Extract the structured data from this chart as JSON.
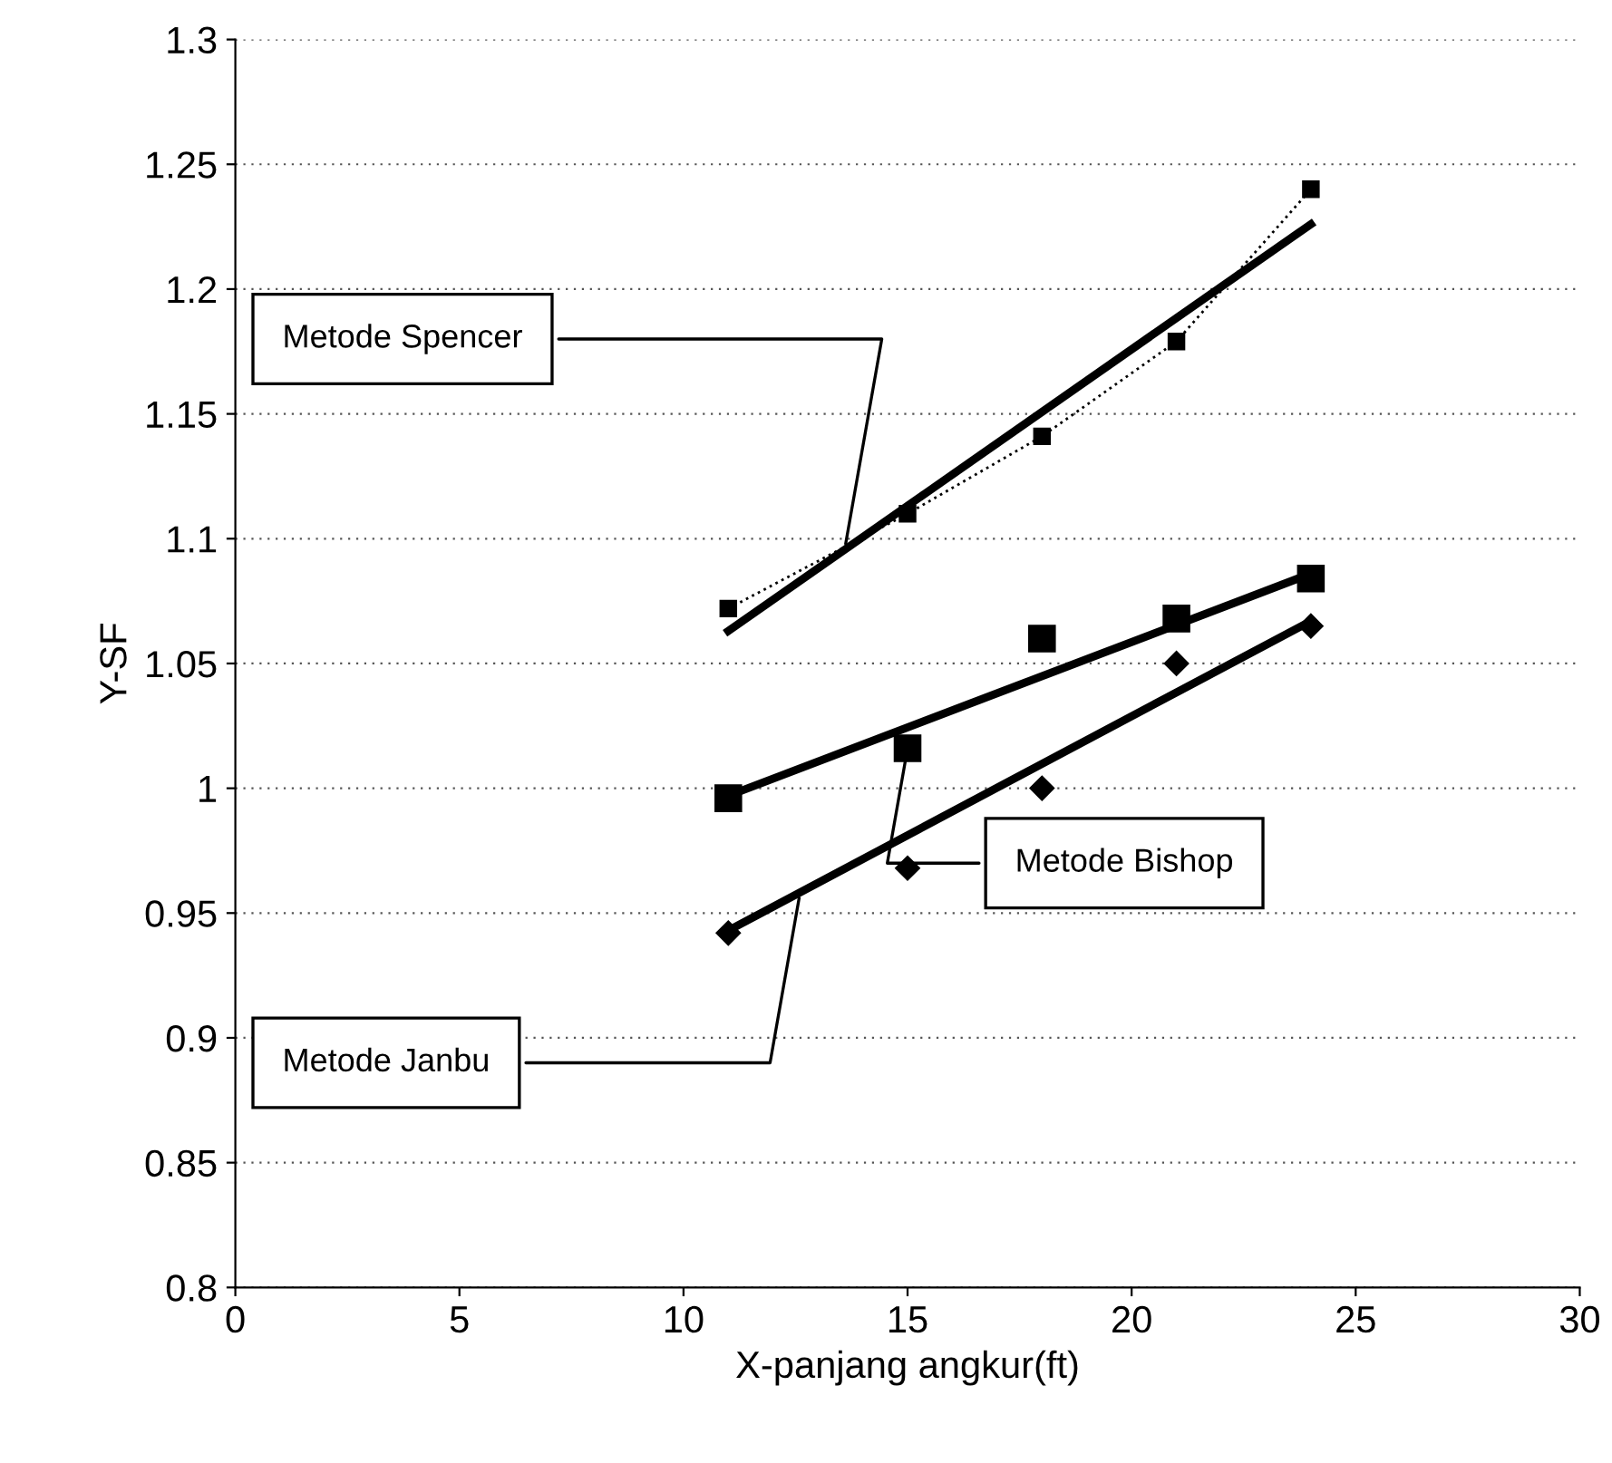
{
  "chart_data": {
    "type": "scatter",
    "xlabel": "X-panjang angkur(ft)",
    "ylabel": "Y-SF",
    "xlim": [
      0,
      30
    ],
    "xticks": [
      0,
      5,
      10,
      15,
      20,
      25,
      30
    ],
    "ylim": [
      0.8,
      1.3
    ],
    "yticks": [
      0.8,
      0.85,
      0.9,
      0.95,
      1,
      1.05,
      1.1,
      1.15,
      1.2,
      1.25,
      1.3
    ],
    "grid": "y",
    "legend": false,
    "series": [
      {
        "type": "line",
        "marker": "square",
        "line_style": "dotted",
        "color": "#000000",
        "x": [
          11,
          15,
          18,
          21,
          24
        ],
        "values": [
          1.072,
          1.11,
          1.141,
          1.179,
          1.24
        ]
      },
      {
        "marker": "square",
        "color": "#000000",
        "x": [
          11,
          15,
          18,
          21,
          24
        ],
        "values": [
          0.996,
          1.016,
          1.06,
          1.068,
          1.084
        ]
      },
      {
        "marker": "diamond",
        "color": "#000000",
        "x": [
          11,
          15,
          18,
          21,
          24
        ],
        "values": [
          0.942,
          0.968,
          1.0,
          1.05,
          1.065
        ]
      },
      {
        "type": "line",
        "marker": "none",
        "line_style": "solid",
        "color": "#000000",
        "x": [
          11,
          24
        ],
        "values": [
          1.063,
          1.226
        ]
      },
      {
        "type": "line",
        "marker": "none",
        "line_style": "solid",
        "color": "#000000",
        "x": [
          11,
          24
        ],
        "values": [
          0.997,
          1.086
        ]
      },
      {
        "type": "line",
        "marker": "none",
        "line_style": "solid",
        "color": "#000000",
        "x": [
          11,
          24
        ],
        "values": [
          0.943,
          1.067
        ]
      }
    ],
    "annotations": [
      {
        "text": "Metode Spencer",
        "x": 13.6,
        "y": 1.096
      },
      {
        "text": "Metode Bishop",
        "x": 15,
        "y": 1.016
      },
      {
        "text": "Metode Janbu",
        "x": 12.6,
        "y": 0.958
      }
    ]
  }
}
